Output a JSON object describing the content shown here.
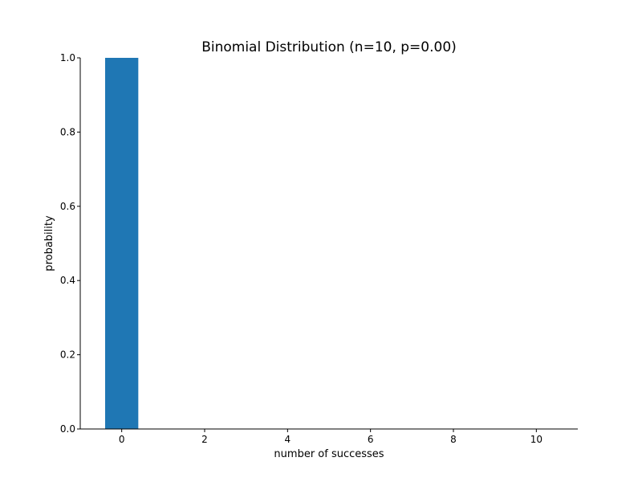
{
  "chart_data": {
    "type": "bar",
    "title": "Binomial Distribution (n=10, p=0.00)",
    "xlabel": "number of successes",
    "ylabel": "probability",
    "x": [
      0,
      1,
      2,
      3,
      4,
      5,
      6,
      7,
      8,
      9,
      10
    ],
    "values": [
      1.0,
      0,
      0,
      0,
      0,
      0,
      0,
      0,
      0,
      0,
      0
    ],
    "xlim": [
      -1,
      11
    ],
    "ylim": [
      0,
      1.0
    ],
    "xticks": [
      "0",
      "2",
      "4",
      "6",
      "8",
      "10"
    ],
    "yticks": [
      "0.0",
      "0.2",
      "0.4",
      "0.6",
      "0.8",
      "1.0"
    ],
    "grid": false,
    "bar_color": "#1f77b4"
  }
}
